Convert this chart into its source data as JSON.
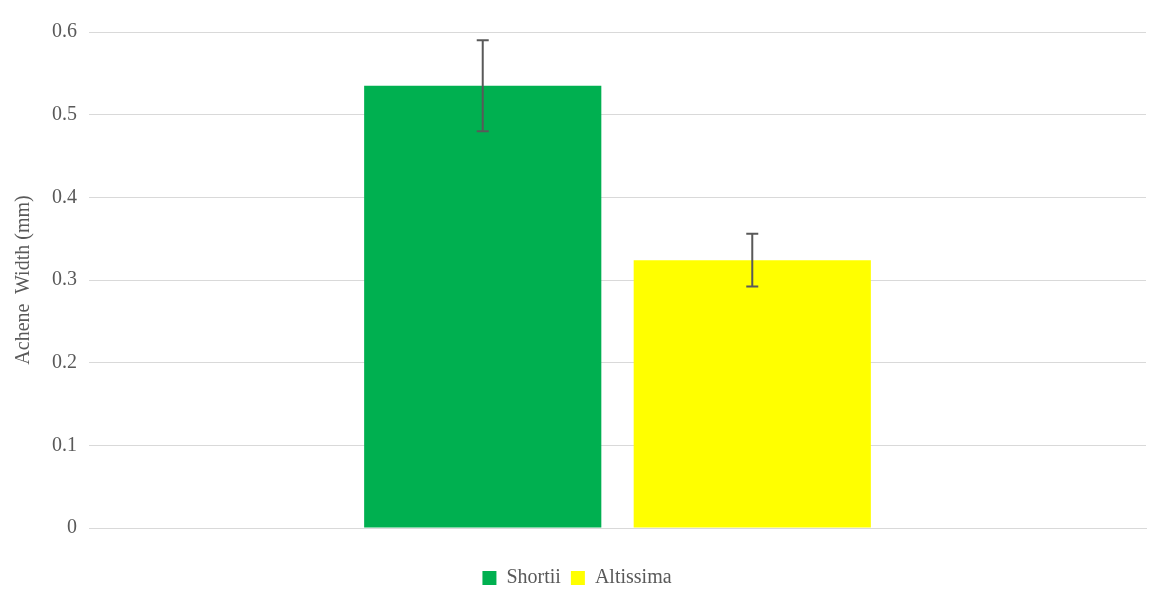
{
  "chart_data": {
    "type": "bar",
    "ylabel": "Achene  Width (mm)",
    "categories": [
      null
    ],
    "series": [
      {
        "name": "Shortii",
        "color": "#00b050",
        "values": [
          0.535
        ],
        "errors": [
          0.055
        ]
      },
      {
        "name": "Altissima",
        "color": "#ffff00",
        "values": [
          0.324
        ],
        "errors": [
          0.032
        ]
      }
    ],
    "ylim": [
      0,
      0.6
    ],
    "yticks": [
      0,
      0.1,
      0.2,
      0.3,
      0.4,
      0.5,
      0.6
    ],
    "grid": "y",
    "legend": "bottom"
  }
}
